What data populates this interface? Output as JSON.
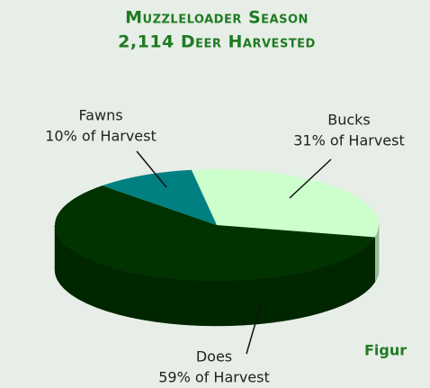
{
  "chart_data": {
    "type": "pie",
    "title": "Muzzleloader Season",
    "subtitle": "2,114 Deer Harvested",
    "categories": [
      "Bucks",
      "Does",
      "Fawns"
    ],
    "values": [
      31,
      59,
      10
    ],
    "value_labels": [
      "31% of Harvest",
      "59% of Harvest",
      "10% of Harvest"
    ],
    "colors": [
      "#ccffcc",
      "#003300",
      "#008080"
    ],
    "annotation": "Figur"
  }
}
